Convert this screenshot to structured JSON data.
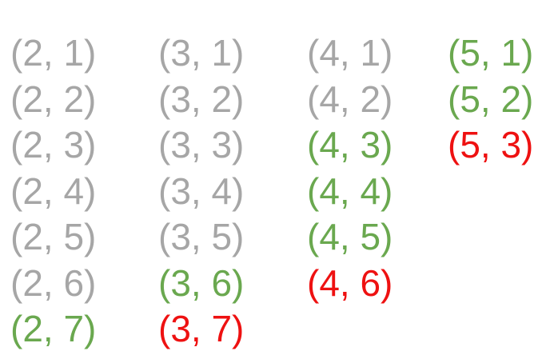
{
  "colors": {
    "gray": "#a6a6a6",
    "green": "#6aa84f",
    "red": "#ee1111"
  },
  "columns": [
    {
      "items": [
        {
          "label": "(2, 1)",
          "color": "gray"
        },
        {
          "label": "(2, 2)",
          "color": "gray"
        },
        {
          "label": "(2, 3)",
          "color": "gray"
        },
        {
          "label": "(2, 4)",
          "color": "gray"
        },
        {
          "label": "(2, 5)",
          "color": "gray"
        },
        {
          "label": "(2, 6)",
          "color": "gray"
        },
        {
          "label": "(2, 7)",
          "color": "green"
        }
      ]
    },
    {
      "items": [
        {
          "label": "(3, 1)",
          "color": "gray"
        },
        {
          "label": "(3, 2)",
          "color": "gray"
        },
        {
          "label": "(3, 3)",
          "color": "gray"
        },
        {
          "label": "(3, 4)",
          "color": "gray"
        },
        {
          "label": "(3, 5)",
          "color": "gray"
        },
        {
          "label": "(3, 6)",
          "color": "green"
        },
        {
          "label": "(3, 7)",
          "color": "red"
        }
      ]
    },
    {
      "items": [
        {
          "label": "(4, 1)",
          "color": "gray"
        },
        {
          "label": "(4, 2)",
          "color": "gray"
        },
        {
          "label": "(4, 3)",
          "color": "green"
        },
        {
          "label": "(4, 4)",
          "color": "green"
        },
        {
          "label": "(4, 5)",
          "color": "green"
        },
        {
          "label": "(4, 6)",
          "color": "red"
        }
      ]
    },
    {
      "items": [
        {
          "label": "(5, 1)",
          "color": "green"
        },
        {
          "label": "(5, 2)",
          "color": "green"
        },
        {
          "label": "(5, 3)",
          "color": "red"
        }
      ]
    }
  ]
}
